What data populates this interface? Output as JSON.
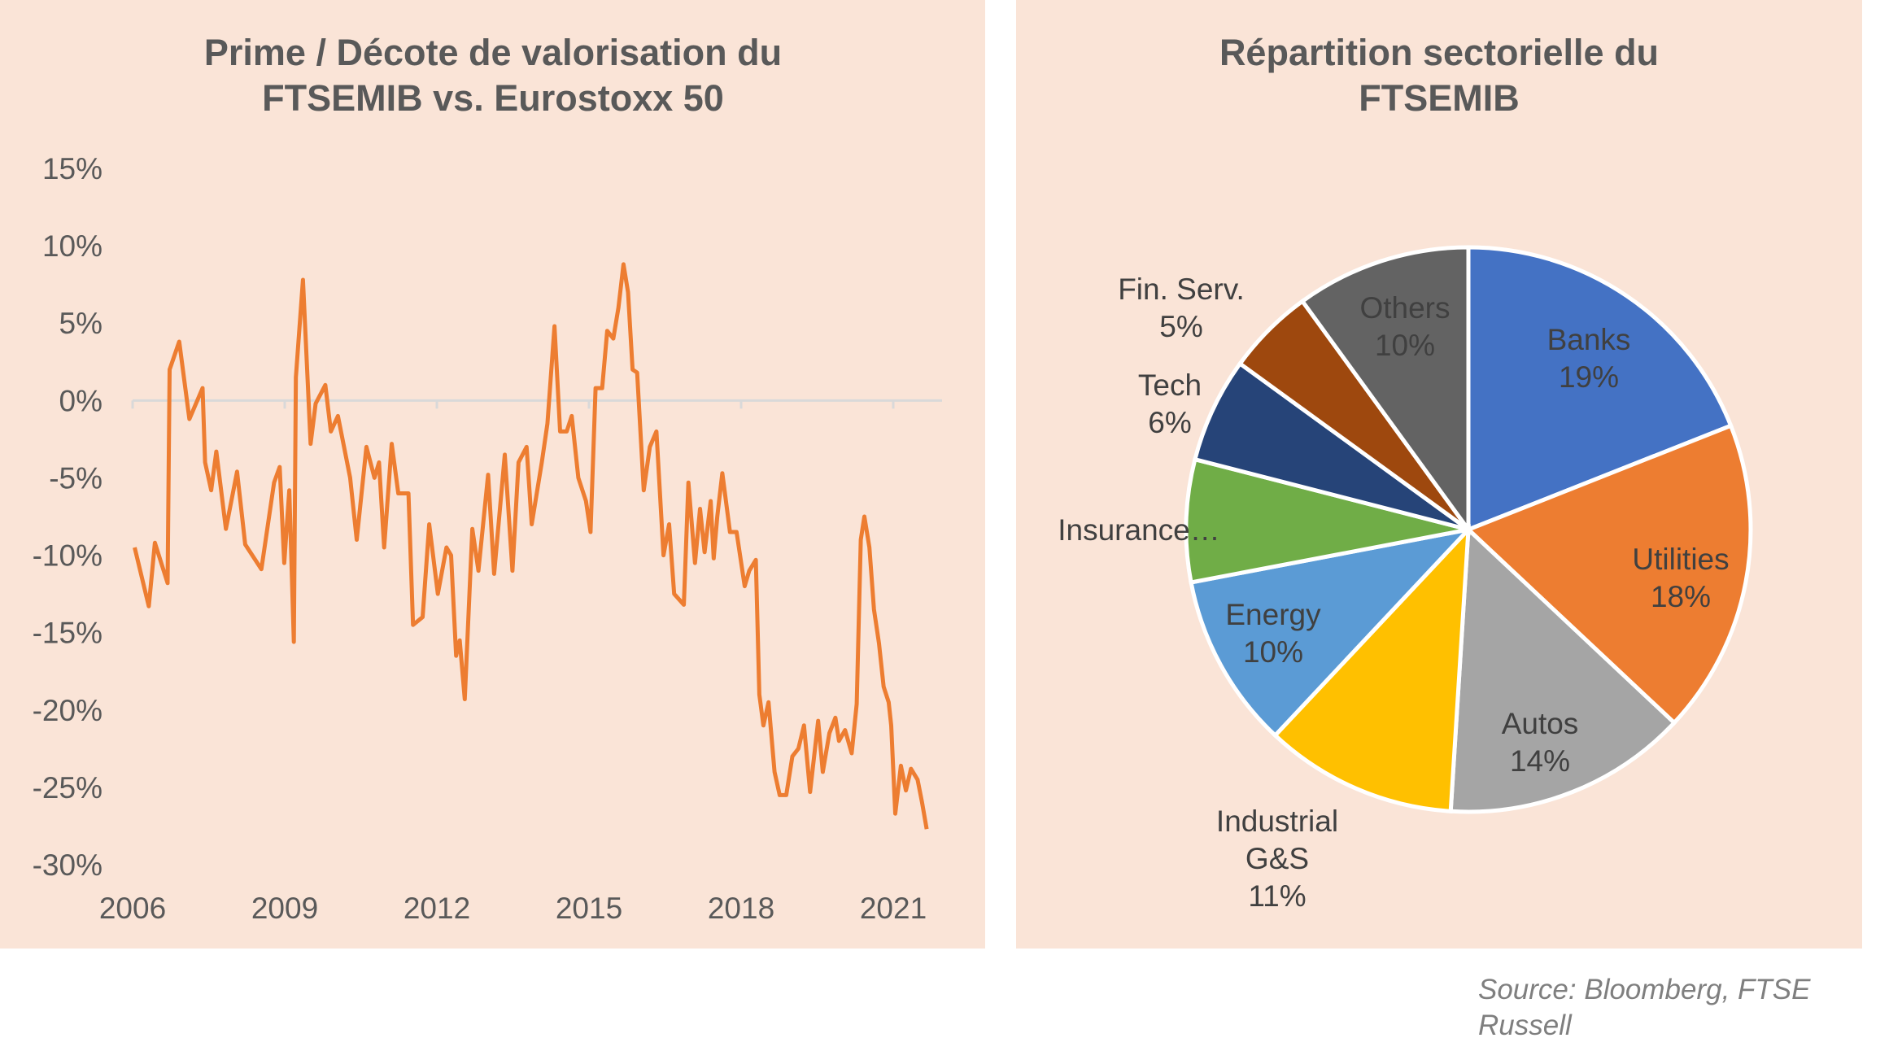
{
  "colors": {
    "panel_bg": "#FAE4D7",
    "line": "#ED7D31",
    "text": "#595959",
    "axis": "#D9D9D9"
  },
  "source": {
    "line1": "Source: Bloomberg, FTSE",
    "line2": "Russell"
  },
  "chart_data": [
    {
      "type": "line",
      "title": [
        "Prime / Décote de valorisation du",
        "FTSEMIB vs. Eurostoxx 50"
      ],
      "xlabel": "",
      "ylabel": "",
      "xlim": [
        2006,
        2022.6
      ],
      "ylim": [
        -30,
        15
      ],
      "x_ticks": [
        2006,
        2009,
        2012,
        2015,
        2018,
        2021
      ],
      "x_tick_labels": [
        "2006",
        "2009",
        "2012",
        "2015",
        "2018",
        "2021"
      ],
      "y_ticks": [
        15,
        10,
        5,
        0,
        -5,
        -10,
        -15,
        -20,
        -25,
        -30
      ],
      "y_tick_labels": [
        "15%",
        "10%",
        "5%",
        "0%",
        "-5%",
        "-10%",
        "-15%",
        "-20%",
        "-25%",
        "-30%"
      ],
      "grid": false,
      "series": [
        {
          "name": "Prime / Décote",
          "color": "#ED7D31",
          "x": [
            2006.04,
            2006.32,
            2006.44,
            2006.69,
            2006.73,
            2006.92,
            2007.12,
            2007.38,
            2007.43,
            2007.55,
            2007.65,
            2007.84,
            2008.06,
            2008.22,
            2008.54,
            2008.79,
            2008.9,
            2008.99,
            2009.09,
            2009.18,
            2009.22,
            2009.36,
            2009.51,
            2009.61,
            2009.8,
            2009.91,
            2010.05,
            2010.29,
            2010.42,
            2010.61,
            2010.77,
            2010.86,
            2010.96,
            2011.11,
            2011.24,
            2011.44,
            2011.53,
            2011.72,
            2011.85,
            2012.02,
            2012.19,
            2012.28,
            2012.38,
            2012.45,
            2012.55,
            2012.7,
            2012.82,
            2013.01,
            2013.13,
            2013.34,
            2013.49,
            2013.61,
            2013.77,
            2013.87,
            2014.07,
            2014.18,
            2014.32,
            2014.43,
            2014.56,
            2014.66,
            2014.79,
            2014.94,
            2015.03,
            2015.13,
            2015.26,
            2015.36,
            2015.48,
            2015.58,
            2015.68,
            2015.77,
            2015.86,
            2015.95,
            2016.08,
            2016.2,
            2016.33,
            2016.47,
            2016.58,
            2016.68,
            2016.87,
            2016.96,
            2017.09,
            2017.19,
            2017.28,
            2017.4,
            2017.46,
            2017.53,
            2017.63,
            2017.78,
            2017.91,
            2018.07,
            2018.16,
            2018.29,
            2018.36,
            2018.44,
            2018.54,
            2018.66,
            2018.76,
            2018.89,
            2019.01,
            2019.13,
            2019.24,
            2019.36,
            2019.52,
            2019.61,
            2019.74,
            2019.86,
            2019.93,
            2020.05,
            2020.18,
            2020.28,
            2020.36,
            2020.43,
            2020.53,
            2020.62,
            2020.72,
            2020.81,
            2020.91,
            2020.96,
            2021.04,
            2021.15,
            2021.25,
            2021.35,
            2021.48,
            2021.57,
            2021.66
          ],
          "y": [
            -9.5,
            -13.3,
            -9.2,
            -11.8,
            2,
            3.8,
            -1.2,
            0.8,
            -4,
            -5.8,
            -3.3,
            -8.3,
            -4.6,
            -9.3,
            -10.9,
            -5.3,
            -4.3,
            -10.5,
            -5.8,
            -15.6,
            1.5,
            7.8,
            -2.8,
            -0.2,
            1,
            -2,
            -1,
            -5,
            -9,
            -3,
            -5,
            -4,
            -9.5,
            -2.8,
            -6,
            -6,
            -14.5,
            -14,
            -8,
            -12.5,
            -9.5,
            -10,
            -16.5,
            -15.5,
            -19.3,
            -8.3,
            -11,
            -4.8,
            -11.2,
            -3.5,
            -11,
            -4,
            -3,
            -8,
            -4,
            -1.5,
            4.8,
            -2,
            -2,
            -1,
            -5,
            -6.5,
            -8.5,
            0.8,
            0.8,
            4.5,
            4,
            6,
            8.8,
            7,
            2,
            1.8,
            -5.8,
            -3,
            -2,
            -10,
            -8,
            -12.5,
            -13.2,
            -5.3,
            -10.5,
            -7,
            -9.8,
            -6.5,
            -10.2,
            -7.5,
            -4.7,
            -8.5,
            -8.5,
            -12,
            -11,
            -10.3,
            -19,
            -21,
            -19.5,
            -24,
            -25.5,
            -25.5,
            -23,
            -22.5,
            -21,
            -25.3,
            -20.7,
            -24,
            -21.5,
            -20.5,
            -22,
            -21.3,
            -22.8,
            -19.6,
            -9,
            -7.5,
            -9.5,
            -13.5,
            -15.7,
            -18.5,
            -19.5,
            -21,
            -26.7,
            -23.6,
            -25.2,
            -23.8,
            -24.5,
            -26,
            -27.7
          ]
        }
      ]
    },
    {
      "type": "pie",
      "title": [
        "Répartition sectorielle du",
        "FTSEMIB"
      ],
      "slices": [
        {
          "label": "Banks",
          "value": 19,
          "pct": "19%",
          "color": "#4472C4"
        },
        {
          "label": "Utilities",
          "value": 18,
          "pct": "18%",
          "color": "#ED7D31"
        },
        {
          "label": "Autos",
          "value": 14,
          "pct": "14%",
          "color": "#A5A5A5"
        },
        {
          "label": "Industrial G&S",
          "value": 11,
          "pct": "11%",
          "color": "#FFC000"
        },
        {
          "label": "Energy",
          "value": 10,
          "pct": "10%",
          "color": "#5B9BD5"
        },
        {
          "label": "Insurance…",
          "value": 7,
          "pct": "",
          "color": "#70AD47"
        },
        {
          "label": "Tech",
          "value": 6,
          "pct": "6%",
          "color": "#264478"
        },
        {
          "label": "Fin. Serv.",
          "value": 5,
          "pct": "5%",
          "color": "#9E480E"
        },
        {
          "label": "Others",
          "value": 10,
          "pct": "10%",
          "color": "#636363"
        }
      ]
    }
  ]
}
